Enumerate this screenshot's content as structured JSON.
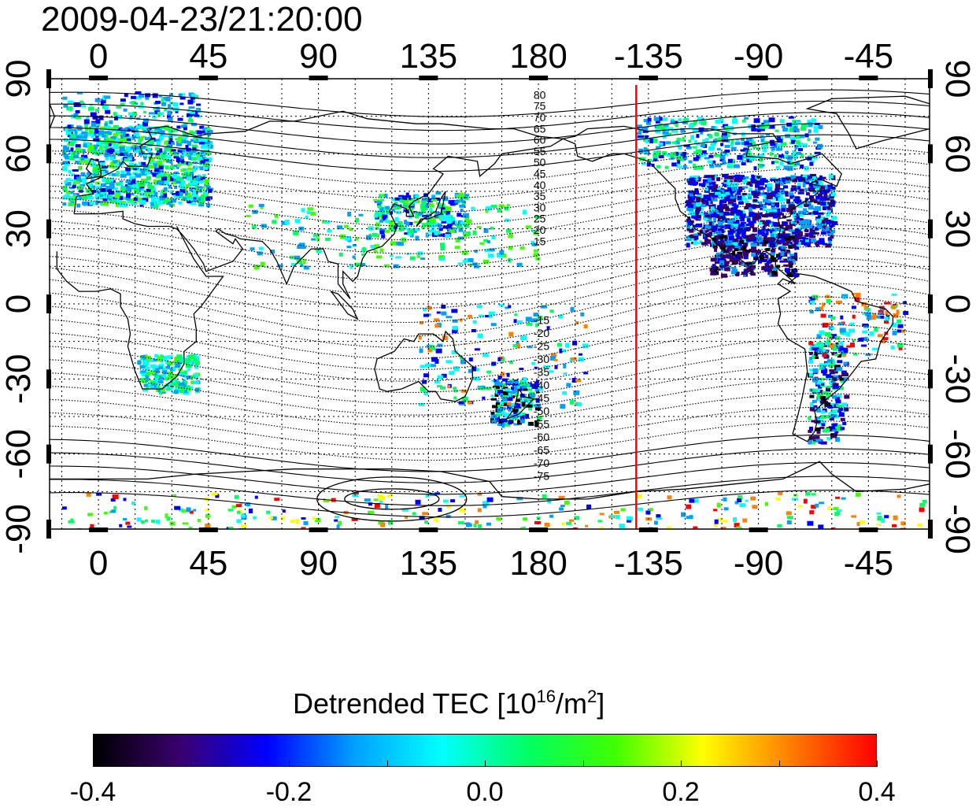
{
  "title": "2009-04-23/21:20:00",
  "map": {
    "top_lon_labels": [
      "0",
      "45",
      "90",
      "135",
      "180",
      "-135",
      "-90",
      "-45"
    ],
    "bottom_lon_labels": [
      "0",
      "45",
      "90",
      "135",
      "180",
      "-135",
      "-90",
      "-45"
    ],
    "left_lat_labels": [
      "90",
      "60",
      "30",
      "0",
      "-30",
      "-60",
      "-90"
    ],
    "right_lat_labels": [
      "90",
      "60",
      "30",
      "0",
      "-30",
      "-60",
      "-90"
    ],
    "contour_labels_north": [
      "80",
      "75",
      "70",
      "65",
      "60",
      "55",
      "50",
      "45",
      "40",
      "35",
      "30",
      "25",
      "20",
      "15"
    ],
    "contour_labels_south": [
      "-15",
      "-20",
      "-25",
      "-30",
      "-35",
      "-40",
      "-45",
      "-50",
      "-55",
      "-60",
      "-65",
      "-70",
      "-75"
    ],
    "terminator_longitude": -140,
    "terminator_color": "#ff0000",
    "lon_range": [
      -20,
      340
    ],
    "lat_range": [
      -90,
      90
    ]
  },
  "colorbar": {
    "title_main": "Detrended TEC  [10",
    "title_sup1": "16",
    "title_mid": "/m",
    "title_sup2": "2",
    "title_end": "]",
    "tick_labels": [
      "-0.4",
      "-0.2",
      "0.0",
      "0.2",
      "0.4"
    ],
    "range": [
      -0.4,
      0.4
    ],
    "colors": [
      "#000000",
      "#3a006e",
      "#0000ff",
      "#00a0ff",
      "#00ffff",
      "#00ff60",
      "#40ff00",
      "#ffff00",
      "#ff8000",
      "#ff0000"
    ]
  }
}
